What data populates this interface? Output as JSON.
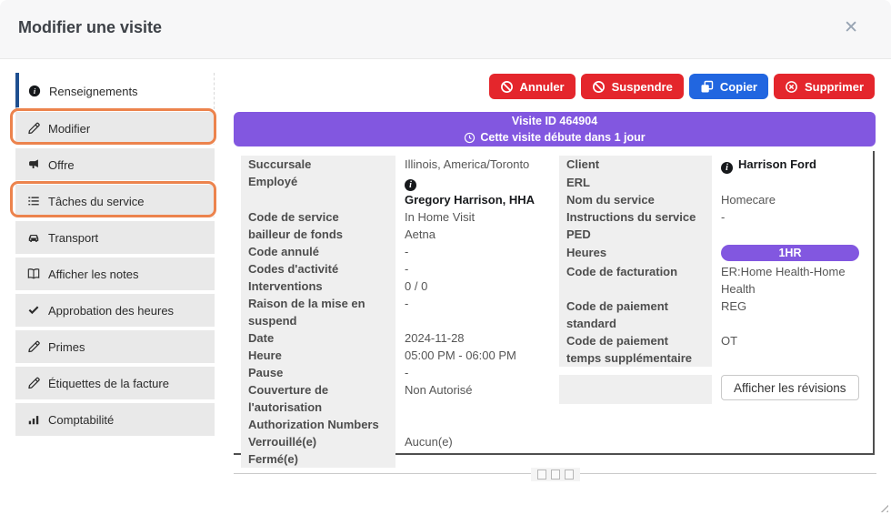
{
  "dialog": {
    "title": "Modifier une visite",
    "close_icon": "✕"
  },
  "sidebar": {
    "items": [
      {
        "label": "Renseignements",
        "icon": "info",
        "active": true
      },
      {
        "label": "Modifier",
        "icon": "pencil",
        "annotated": true
      },
      {
        "label": "Offre",
        "icon": "megaphone"
      },
      {
        "label": "Tâches du service",
        "icon": "tasks",
        "annotated": true
      },
      {
        "label": "Transport",
        "icon": "car"
      },
      {
        "label": "Afficher les notes",
        "icon": "book"
      },
      {
        "label": "Approbation des heures",
        "icon": "check"
      },
      {
        "label": "Primes",
        "icon": "pencil"
      },
      {
        "label": "Étiquettes de la facture",
        "icon": "pencil"
      },
      {
        "label": "Comptabilité",
        "icon": "chart"
      }
    ]
  },
  "actions": [
    {
      "label": "Annuler",
      "icon": "ban",
      "color": "#e4262c"
    },
    {
      "label": "Suspendre",
      "icon": "ban",
      "color": "#e4262c"
    },
    {
      "label": "Copier",
      "icon": "copy",
      "color": "#2166e0"
    },
    {
      "label": "Supprimer",
      "icon": "circle-x",
      "color": "#e4262c"
    }
  ],
  "banner": {
    "line1": "Visite ID 464904",
    "line2": "Cette visite débute dans 1 jour"
  },
  "details_left": {
    "rows": [
      {
        "label": "Succursale",
        "value": "Illinois, America/Toronto"
      },
      {
        "label": "Employé",
        "value": "Gregory Harrison, HHA",
        "type": "person"
      },
      {
        "label": "Code de service",
        "value": "In Home Visit"
      },
      {
        "label": "bailleur de fonds",
        "value": "Aetna"
      },
      {
        "label": "Code annulé",
        "value": "-"
      },
      {
        "label": "Codes d'activité",
        "value": "-"
      },
      {
        "label": "Interventions",
        "value": "0 / 0"
      },
      {
        "label": "Raison de la mise en suspend",
        "value": "-"
      },
      {
        "label": "Date",
        "value": "2024-11-28"
      },
      {
        "label": "Heure",
        "value": "05:00 PM  -  06:00 PM"
      },
      {
        "label": "Pause",
        "value": "-"
      },
      {
        "label": "Couverture de l'autorisation",
        "value": "Non Autorisé"
      },
      {
        "label": "Authorization Numbers",
        "value": "",
        "type": "empty"
      },
      {
        "label": "Verrouillé(e)",
        "value": "Aucun(e)"
      },
      {
        "label": "Fermé(e)",
        "value": "",
        "type": "empty"
      }
    ]
  },
  "details_right": {
    "rows": [
      {
        "label": "Client",
        "value": "Harrison Ford",
        "type": "person"
      },
      {
        "label": "ERL",
        "value": "",
        "type": "empty"
      },
      {
        "label": "Nom du service",
        "value": "Homecare"
      },
      {
        "label": "Instructions du service",
        "value": "-"
      },
      {
        "label": "PED",
        "value": "",
        "type": "empty"
      },
      {
        "label": "Heures",
        "value": "1HR",
        "type": "badge"
      },
      {
        "label": "Code de facturation",
        "value": "ER:Home Health-Home Health"
      },
      {
        "label": "Code de paiement standard",
        "value": "REG"
      },
      {
        "label": "Code de paiement temps supplémentaire",
        "value": "OT"
      },
      {
        "label": "",
        "value": "Afficher les révisions",
        "type": "button"
      }
    ]
  },
  "colors": {
    "accent_purple": "#8257e0",
    "danger_red": "#e4262c",
    "primary_blue": "#2166e0",
    "annotation_orange": "#ec834d",
    "active_bar_blue": "#1e4f90"
  }
}
